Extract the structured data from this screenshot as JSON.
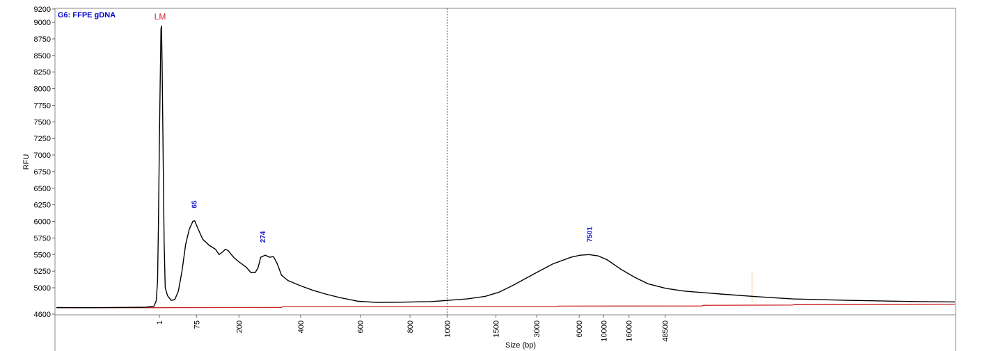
{
  "colors": {
    "trace": "#000000",
    "baseline": "#cc2222",
    "peak_label": "#1a1acc",
    "lm_label": "#dd2222",
    "title": "#0000cc",
    "marker_line": "#6633cc",
    "minor_marker": "#e8c080"
  },
  "chart_data": {
    "type": "line",
    "title": "G6: FFPE gDNA",
    "xlabel": "Size (bp)",
    "ylabel": "RFU",
    "ylim": [
      4600,
      9200
    ],
    "grid": false,
    "y_ticks": [
      9200,
      9000,
      8750,
      8500,
      8250,
      8000,
      7750,
      7500,
      7250,
      7000,
      6750,
      6500,
      6250,
      6000,
      5750,
      5500,
      5250,
      5000,
      4600
    ],
    "x_ticks": [
      "1",
      "75",
      "200",
      "400",
      "600",
      "800",
      "1000",
      "1500",
      "3000",
      "6000",
      "10000",
      "16000",
      "48500"
    ],
    "x_tick_positions_pct": [
      0,
      4.1,
      8.8,
      15.6,
      22.2,
      27.7,
      31.8,
      37.2,
      41.7,
      46.4,
      49.1,
      51.9,
      55.9
    ],
    "lower_marker": "LM",
    "peaks": [
      {
        "label": "65",
        "x_pct": 3.8,
        "rfu": 6010
      },
      {
        "label": "274",
        "x_pct": 11.4,
        "rfu": 5490
      },
      {
        "label": "7501",
        "x_pct": 47.5,
        "rfu": 5500
      }
    ],
    "series": [
      {
        "points": [
          [
            -11.7,
            4700
          ],
          [
            -8,
            4698
          ],
          [
            -4,
            4702
          ],
          [
            -1.5,
            4705
          ],
          [
            -0.6,
            4720
          ],
          [
            -0.35,
            4800
          ],
          [
            -0.2,
            5100
          ],
          [
            -0.1,
            6000
          ],
          [
            0,
            7200
          ],
          [
            0.1,
            8200
          ],
          [
            0.18,
            8900
          ],
          [
            0.23,
            8950
          ],
          [
            0.3,
            8400
          ],
          [
            0.42,
            6900
          ],
          [
            0.52,
            5700
          ],
          [
            0.65,
            5000
          ],
          [
            0.9,
            4880
          ],
          [
            1.3,
            4810
          ],
          [
            1.7,
            4820
          ],
          [
            2.1,
            4950
          ],
          [
            2.5,
            5250
          ],
          [
            2.9,
            5650
          ],
          [
            3.3,
            5880
          ],
          [
            3.7,
            6000
          ],
          [
            3.9,
            6010
          ],
          [
            4.3,
            5880
          ],
          [
            4.8,
            5730
          ],
          [
            5.5,
            5640
          ],
          [
            6.2,
            5580
          ],
          [
            6.6,
            5500
          ],
          [
            7.0,
            5540
          ],
          [
            7.3,
            5580
          ],
          [
            7.6,
            5560
          ],
          [
            8.2,
            5460
          ],
          [
            8.8,
            5390
          ],
          [
            9.6,
            5310
          ],
          [
            10.1,
            5230
          ],
          [
            10.6,
            5230
          ],
          [
            10.9,
            5300
          ],
          [
            11.2,
            5460
          ],
          [
            11.7,
            5490
          ],
          [
            12.2,
            5460
          ],
          [
            12.6,
            5470
          ],
          [
            13.0,
            5370
          ],
          [
            13.5,
            5190
          ],
          [
            14.2,
            5110
          ],
          [
            15.6,
            5030
          ],
          [
            17,
            4960
          ],
          [
            18.5,
            4900
          ],
          [
            20,
            4850
          ],
          [
            22,
            4795
          ],
          [
            24,
            4778
          ],
          [
            26,
            4780
          ],
          [
            28,
            4785
          ],
          [
            30,
            4790
          ],
          [
            31.8,
            4808
          ],
          [
            34,
            4830
          ],
          [
            36,
            4870
          ],
          [
            37.5,
            4930
          ],
          [
            39,
            5030
          ],
          [
            41.7,
            5230
          ],
          [
            43.5,
            5360
          ],
          [
            45.5,
            5460
          ],
          [
            46.5,
            5490
          ],
          [
            47.5,
            5500
          ],
          [
            48.5,
            5480
          ],
          [
            49.5,
            5420
          ],
          [
            51,
            5280
          ],
          [
            52.5,
            5160
          ],
          [
            54,
            5060
          ],
          [
            56,
            4990
          ],
          [
            58,
            4950
          ],
          [
            62,
            4905
          ],
          [
            66,
            4865
          ],
          [
            70,
            4830
          ],
          [
            76,
            4810
          ],
          [
            84,
            4790
          ],
          [
            88.3,
            4785
          ]
        ]
      },
      {
        "points": [
          [
            -11.7,
            4698
          ],
          [
            0,
            4698
          ],
          [
            13.5,
            4702
          ],
          [
            13.6,
            4712
          ],
          [
            44,
            4714
          ],
          [
            44.1,
            4722
          ],
          [
            60,
            4724
          ],
          [
            60.1,
            4734
          ],
          [
            70,
            4738
          ],
          [
            70.1,
            4744
          ],
          [
            88.3,
            4748
          ]
        ]
      }
    ]
  }
}
